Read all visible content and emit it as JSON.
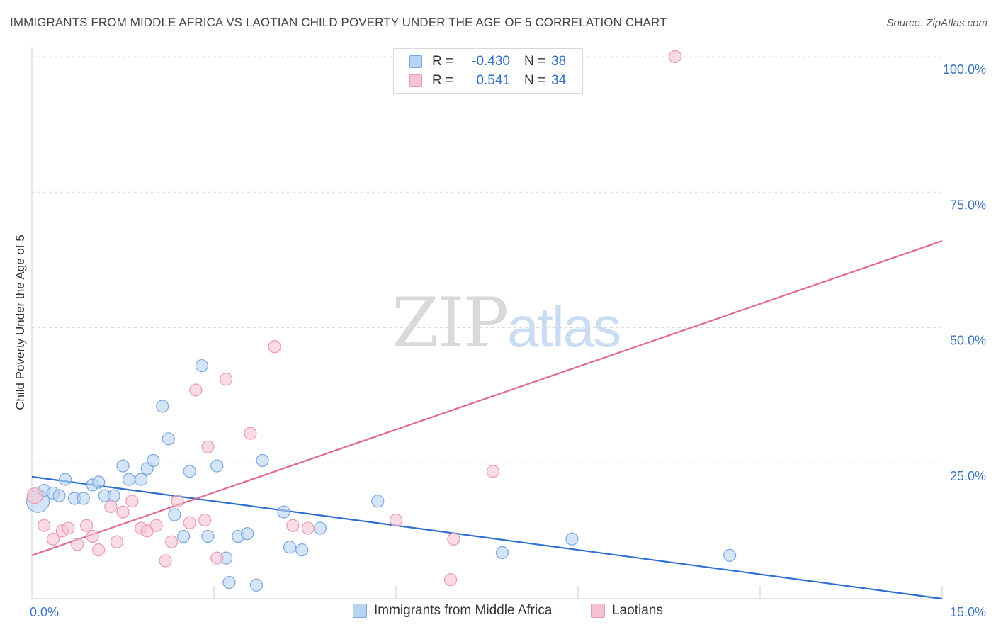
{
  "header": {
    "title": "IMMIGRANTS FROM MIDDLE AFRICA VS LAOTIAN CHILD POVERTY UNDER THE AGE OF 5 CORRELATION CHART",
    "source": "Source: ZipAtlas.com"
  },
  "watermark": {
    "zip": "ZIP",
    "atlas": "atlas"
  },
  "legend": {
    "rows": [
      {
        "r_label": "R =",
        "r_value": "-0.430",
        "n_label": "N =",
        "n_value": "38"
      },
      {
        "r_label": "R =",
        "r_value": "0.541",
        "n_label": "N =",
        "n_value": "34"
      }
    ]
  },
  "colors": {
    "blue_fill": "#b9d3f3",
    "blue_stroke": "#7aa7df",
    "blue_line": "#2f6fd0",
    "pink_fill": "#f7c3d3",
    "pink_stroke": "#ec97b4",
    "pink_line": "#e06a94",
    "axis_text": "#3b73c4",
    "grid": "#d9d9d9"
  },
  "chart_data": {
    "type": "scatter",
    "title": "IMMIGRANTS FROM MIDDLE AFRICA VS LAOTIAN CHILD POVERTY UNDER THE AGE OF 5 CORRELATION CHART",
    "xlabel": "",
    "ylabel": "Child Poverty Under the Age of 5",
    "xlim": [
      0,
      15
    ],
    "ylim": [
      0,
      100
    ],
    "x_tick_labels": [
      "0.0%",
      "15.0%"
    ],
    "y_ticks": [
      25,
      50,
      75,
      100
    ],
    "y_tick_labels": [
      "25.0%",
      "50.0%",
      "75.0%",
      "100.0%"
    ],
    "grid": true,
    "legend_position": "top-center",
    "series": [
      {
        "name": "Immigrants from Middle Africa",
        "color": "blue",
        "r": -0.43,
        "n": 38,
        "trend": {
          "x": [
            0,
            15
          ],
          "y": [
            22.5,
            0
          ]
        },
        "points": [
          [
            0.1,
            18.0
          ],
          [
            0.2,
            20.0
          ],
          [
            0.35,
            19.5
          ],
          [
            0.45,
            19.0
          ],
          [
            0.55,
            22.0
          ],
          [
            0.7,
            18.5
          ],
          [
            0.85,
            18.5
          ],
          [
            1.0,
            21.0
          ],
          [
            1.1,
            21.5
          ],
          [
            1.2,
            19.0
          ],
          [
            1.35,
            19.0
          ],
          [
            1.5,
            24.5
          ],
          [
            1.6,
            22.0
          ],
          [
            1.8,
            22.0
          ],
          [
            1.9,
            24.0
          ],
          [
            2.0,
            25.5
          ],
          [
            2.15,
            35.5
          ],
          [
            2.25,
            29.5
          ],
          [
            2.35,
            15.5
          ],
          [
            2.5,
            11.5
          ],
          [
            2.6,
            23.5
          ],
          [
            2.8,
            43.0
          ],
          [
            2.9,
            11.5
          ],
          [
            3.05,
            24.5
          ],
          [
            3.2,
            7.5
          ],
          [
            3.25,
            3.0
          ],
          [
            3.4,
            11.5
          ],
          [
            3.55,
            12.0
          ],
          [
            3.7,
            2.5
          ],
          [
            3.8,
            25.5
          ],
          [
            4.15,
            16.0
          ],
          [
            4.25,
            9.5
          ],
          [
            4.45,
            9.0
          ],
          [
            4.75,
            13.0
          ],
          [
            5.7,
            18.0
          ],
          [
            7.75,
            8.5
          ],
          [
            8.9,
            11.0
          ],
          [
            11.5,
            8.0
          ]
        ]
      },
      {
        "name": "Laotians",
        "color": "pink",
        "r": 0.541,
        "n": 34,
        "trend": {
          "x": [
            0,
            15
          ],
          "y": [
            8.0,
            66.0
          ]
        },
        "points": [
          [
            0.05,
            19.0
          ],
          [
            0.2,
            13.5
          ],
          [
            0.35,
            11.0
          ],
          [
            0.5,
            12.5
          ],
          [
            0.6,
            13.0
          ],
          [
            0.75,
            10.0
          ],
          [
            0.9,
            13.5
          ],
          [
            1.0,
            11.5
          ],
          [
            1.1,
            9.0
          ],
          [
            1.3,
            17.0
          ],
          [
            1.4,
            10.5
          ],
          [
            1.5,
            16.0
          ],
          [
            1.65,
            18.0
          ],
          [
            1.8,
            13.0
          ],
          [
            1.9,
            12.5
          ],
          [
            2.05,
            13.5
          ],
          [
            2.2,
            7.0
          ],
          [
            2.3,
            10.5
          ],
          [
            2.4,
            18.0
          ],
          [
            2.6,
            14.0
          ],
          [
            2.7,
            38.5
          ],
          [
            2.85,
            14.5
          ],
          [
            2.9,
            28.0
          ],
          [
            3.05,
            7.5
          ],
          [
            3.2,
            40.5
          ],
          [
            3.6,
            30.5
          ],
          [
            4.0,
            46.5
          ],
          [
            4.3,
            13.5
          ],
          [
            4.55,
            13.0
          ],
          [
            6.0,
            14.5
          ],
          [
            6.9,
            3.5
          ],
          [
            6.95,
            11.0
          ],
          [
            7.6,
            23.5
          ],
          [
            10.6,
            100.0
          ]
        ]
      }
    ]
  },
  "bottom_legend": {
    "items": [
      {
        "label": "Immigrants from Middle Africa"
      },
      {
        "label": "Laotians"
      }
    ]
  }
}
